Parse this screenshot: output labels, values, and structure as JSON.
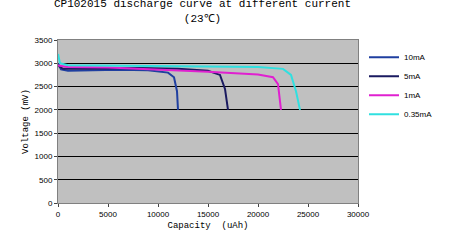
{
  "chart_data": {
    "type": "line",
    "title": "CP102015 discharge curve at different current",
    "subtitle": "(23℃)",
    "x_label": "Capacity  (uAh)",
    "y_label": "Voltage (mV)",
    "xlim": [
      0,
      30000
    ],
    "xticks": [
      0,
      5000,
      10000,
      15000,
      20000,
      25000,
      30000
    ],
    "ylim": [
      0,
      3500
    ],
    "yticks": [
      0,
      500,
      1000,
      1500,
      2000,
      2500,
      3000,
      3500
    ],
    "grid": "y",
    "legend": "right",
    "series": [
      {
        "name": "10mA",
        "color": "#1f3fa0",
        "x": [
          0,
          300,
          1000,
          3000,
          6000,
          9000,
          11000,
          11600,
          11900,
          12000
        ],
        "values": [
          3000,
          2870,
          2840,
          2850,
          2860,
          2850,
          2800,
          2700,
          2400,
          2000
        ]
      },
      {
        "name": "5mA",
        "color": "#1a1a60",
        "x": [
          0,
          500,
          3000,
          8000,
          12000,
          15000,
          16200,
          16700,
          17000
        ],
        "values": [
          2950,
          2880,
          2880,
          2900,
          2880,
          2840,
          2750,
          2450,
          2000
        ]
      },
      {
        "name": "1mA",
        "color": "#e020d0",
        "x": [
          0,
          1000,
          5000,
          10000,
          15000,
          20000,
          21500,
          22000,
          22300
        ],
        "values": [
          2950,
          2920,
          2910,
          2870,
          2820,
          2760,
          2700,
          2550,
          2000
        ]
      },
      {
        "name": "0.35mA",
        "color": "#30e0e0",
        "x": [
          0,
          200,
          1000,
          5000,
          10000,
          15000,
          20000,
          22500,
          23300,
          23800,
          24200
        ],
        "values": [
          3200,
          3000,
          2960,
          2950,
          2940,
          2930,
          2920,
          2880,
          2750,
          2400,
          2000
        ]
      }
    ]
  }
}
